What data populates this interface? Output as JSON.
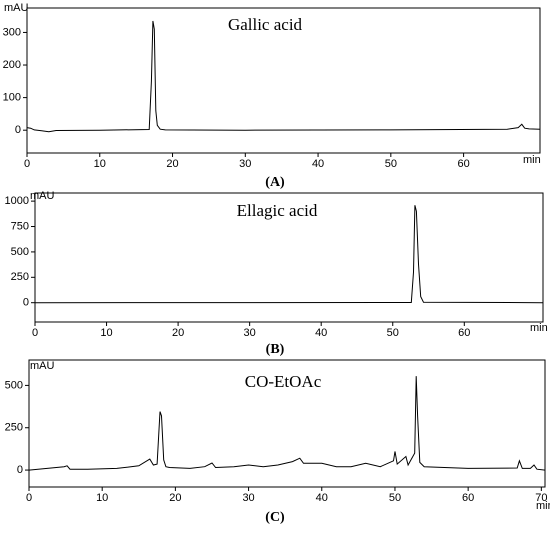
{
  "chart_data": [
    {
      "type": "line",
      "title": "Gallic acid",
      "caption": "(A)",
      "y_label": "mAU",
      "x_label": "min",
      "color": "#000000",
      "xlim": [
        0,
        70.5
      ],
      "ylim": [
        -70,
        375
      ],
      "xticks": [
        0,
        10,
        20,
        30,
        40,
        50,
        60
      ],
      "yticks": [
        0,
        100,
        200,
        300
      ],
      "x": [
        0,
        0.5,
        1,
        2,
        3,
        4,
        10,
        16.8,
        17.1,
        17.3,
        17.5,
        17.7,
        17.9,
        18.3,
        19,
        30,
        50,
        66,
        67.5,
        68,
        68.4,
        69,
        70.5
      ],
      "values": [
        8,
        6,
        1,
        -2,
        -5,
        -1,
        0,
        2,
        150,
        335,
        310,
        60,
        15,
        3,
        1,
        0,
        1,
        3,
        8,
        18,
        6,
        4,
        3
      ]
    },
    {
      "type": "line",
      "title": "Ellagic acid",
      "caption": "(B)",
      "y_label": "mAU",
      "x_label": "min",
      "color": "#000000",
      "xlim": [
        0,
        71
      ],
      "ylim": [
        -190,
        1080
      ],
      "xticks": [
        0,
        10,
        20,
        30,
        40,
        50,
        60
      ],
      "yticks": [
        0,
        250,
        500,
        750,
        1000
      ],
      "x": [
        0,
        52.6,
        52.9,
        53.1,
        53.3,
        53.6,
        53.9,
        54.3,
        71
      ],
      "values": [
        0,
        2,
        300,
        960,
        900,
        380,
        60,
        5,
        0
      ]
    },
    {
      "type": "line",
      "title": "CO-EtOAc",
      "caption": "(C)",
      "y_label": "mAU",
      "x_label": "min",
      "color": "#000000",
      "xlim": [
        0,
        70.5
      ],
      "ylim": [
        -100,
        650
      ],
      "xticks": [
        0,
        10,
        20,
        30,
        40,
        50,
        60,
        70
      ],
      "yticks": [
        0,
        250,
        500
      ],
      "x": [
        0,
        4.8,
        5.2,
        5.6,
        8,
        12,
        15,
        16.5,
        17,
        17.5,
        17.9,
        18.1,
        18.4,
        18.7,
        19.2,
        22,
        24,
        25,
        25.5,
        28,
        30,
        32,
        34,
        36,
        37,
        37.5,
        40,
        42,
        44,
        46,
        48,
        49.8,
        50,
        50.3,
        51.5,
        51.8,
        52.7,
        52.9,
        53.1,
        53.4,
        54,
        60,
        66.7,
        67,
        67.4,
        68.5,
        69,
        69.4,
        70.5
      ],
      "values": [
        0,
        20,
        25,
        5,
        5,
        10,
        25,
        65,
        30,
        35,
        345,
        320,
        60,
        20,
        15,
        10,
        20,
        42,
        15,
        20,
        30,
        20,
        30,
        50,
        70,
        40,
        40,
        20,
        20,
        40,
        20,
        55,
        110,
        35,
        80,
        30,
        100,
        555,
        320,
        45,
        20,
        10,
        12,
        55,
        10,
        10,
        30,
        5,
        0
      ]
    }
  ]
}
